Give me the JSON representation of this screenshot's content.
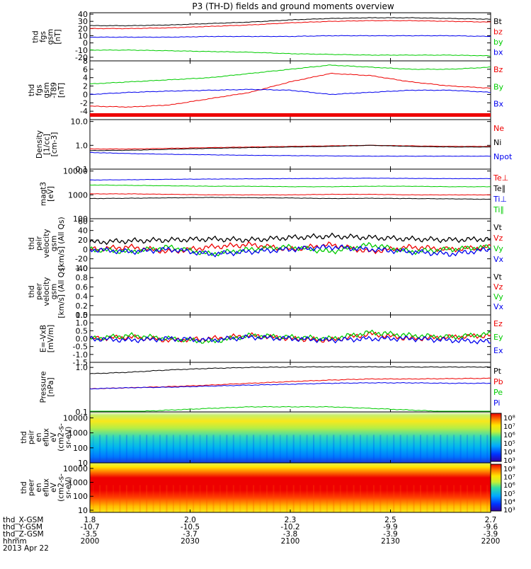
{
  "chart_data": {
    "type": "line",
    "title": "P3 (TH-D) fields and ground moments overview",
    "x": {
      "rows": [
        {
          "label": "thd_X-GSM",
          "values": [
            "1.8",
            "2.0",
            "2.3",
            "2.5",
            "2.7"
          ]
        },
        {
          "label": "thd_Y-GSM",
          "values": [
            "-10.7",
            "-10.5",
            "-10.2",
            "-9.9",
            "-9.6"
          ]
        },
        {
          "label": "thd_Z-GSM",
          "values": [
            "-3.5",
            "-3.7",
            "-3.8",
            "-3.9",
            "-3.9"
          ]
        },
        {
          "label": "hhmm",
          "values": [
            "2000",
            "2030",
            "2100",
            "2130",
            "2200"
          ]
        }
      ],
      "date": "2013 Apr 22"
    },
    "panels": [
      {
        "ylabel": [
          "thd",
          "fgs",
          "gsm",
          "[nT]"
        ],
        "ylim": [
          -25,
          42
        ],
        "yticks": [
          {
            "v": 40,
            "t": "40"
          },
          {
            "v": 30,
            "t": "30"
          },
          {
            "v": 20,
            "t": "20"
          },
          {
            "v": 10,
            "t": "10"
          },
          {
            "v": 0,
            "t": "0"
          },
          {
            "v": -10,
            "t": "-10"
          },
          {
            "v": -20,
            "t": "-20"
          }
        ],
        "series": [
          {
            "name": "Bt",
            "color": "#000000",
            "values": [
              24,
              24,
              25,
              27,
              29,
              32,
              34,
              35,
              35,
              34,
              33
            ]
          },
          {
            "name": "bz",
            "color": "#ee0000",
            "values": [
              20,
              20,
              21,
              23,
              25,
              28,
              30,
              31,
              31,
              30,
              29
            ]
          },
          {
            "name": "by",
            "color": "#00cc00",
            "values": [
              -10,
              -10,
              -11,
              -12,
              -13,
              -15,
              -16,
              -17,
              -17,
              -17,
              -18
            ]
          },
          {
            "name": "bx",
            "color": "#0000ee",
            "values": [
              8,
              8,
              8,
              9,
              9,
              9,
              10,
              10,
              10,
              10,
              9
            ]
          }
        ]
      },
      {
        "ylabel": [
          "thd",
          "fgs",
          "gsm",
          "-T89",
          "[nT]"
        ],
        "ylim": [
          -6,
          8
        ],
        "yticks": [
          {
            "v": 8,
            "t": "8"
          },
          {
            "v": 6,
            "t": "6"
          },
          {
            "v": 4,
            "t": "4"
          },
          {
            "v": 2,
            "t": "2"
          },
          {
            "v": 0,
            "t": "0"
          },
          {
            "v": -2,
            "t": "-2"
          },
          {
            "v": -4,
            "t": "-4"
          }
        ],
        "series": [
          {
            "name": "Bz",
            "color": "#ee0000",
            "values": [
              -2.8,
              -3,
              -2.5,
              -1,
              0.5,
              3,
              5,
              4.5,
              3,
              2,
              1.5
            ]
          },
          {
            "name": "By",
            "color": "#00cc00",
            "values": [
              2.5,
              3,
              3.5,
              4,
              5,
              6,
              7,
              6.5,
              6,
              6,
              6.5
            ]
          },
          {
            "name": "Bx",
            "color": "#0000ee",
            "values": [
              0,
              0.5,
              0.8,
              1,
              1.2,
              1,
              0,
              0.5,
              1,
              1,
              0.5
            ]
          }
        ]
      },
      {
        "ylabel": [
          "Density",
          "[1/cc]",
          "[cm-3]"
        ],
        "log": true,
        "ylim": [
          0.1,
          12
        ],
        "yticks": [
          {
            "v": 10,
            "t": "10.0"
          },
          {
            "v": 1,
            "t": "1.0"
          },
          {
            "v": 0.1,
            "t": "0.1"
          }
        ],
        "series": [
          {
            "name": "Ne",
            "color": "#ee0000",
            "values": [
              0.7,
              0.7,
              0.75,
              0.8,
              0.85,
              0.9,
              0.95,
              1.0,
              0.95,
              0.9,
              0.9
            ]
          },
          {
            "name": "Ni",
            "color": "#000000",
            "values": [
              0.6,
              0.62,
              0.68,
              0.75,
              0.8,
              0.85,
              0.9,
              1.0,
              0.9,
              0.85,
              0.85
            ]
          },
          {
            "name": "Npot",
            "color": "#0000ee",
            "values": [
              0.5,
              0.45,
              0.42,
              0.4,
              0.38,
              0.37,
              0.36,
              0.35,
              0.35,
              0.35,
              0.35
            ]
          }
        ]
      },
      {
        "ylabel": [
          "magt3",
          "[eV]"
        ],
        "log": true,
        "ylim": [
          100,
          12000
        ],
        "yticks": [
          {
            "v": 10000,
            "t": "10000"
          },
          {
            "v": 1000,
            "t": "1000"
          },
          {
            "v": 100,
            "t": "100"
          }
        ],
        "series": [
          {
            "name": "Te⊥",
            "color": "#ee0000",
            "values": [
              1100,
              1100,
              1050,
              1000,
              1000,
              1000,
              1050,
              1050,
              1000,
              1000,
              1000
            ]
          },
          {
            "name": "Te∥",
            "color": "#000000",
            "values": [
              700,
              720,
              750,
              780,
              760,
              740,
              700,
              720,
              700,
              680,
              650
            ]
          },
          {
            "name": "Ti⊥",
            "color": "#0000ee",
            "values": [
              4200,
              4300,
              4500,
              4600,
              4700,
              4800,
              4900,
              5000,
              4900,
              4800,
              4800
            ]
          },
          {
            "name": "Ti∥",
            "color": "#00cc00",
            "values": [
              2600,
              2500,
              2400,
              2300,
              2300,
              2200,
              2200,
              2300,
              2300,
              2200,
              2200
            ]
          }
        ]
      },
      {
        "ylabel": [
          "thd",
          "peir",
          "velocity",
          "gsm",
          "[km/s] (All Qs)"
        ],
        "ylim": [
          -40,
          65
        ],
        "yticks": [
          {
            "v": 60,
            "t": "60"
          },
          {
            "v": 40,
            "t": "40"
          },
          {
            "v": 20,
            "t": "20"
          },
          {
            "v": 0,
            "t": "0"
          },
          {
            "v": -20,
            "t": "-20"
          },
          {
            "v": -40,
            "t": "-40"
          }
        ],
        "series": [
          {
            "name": "Vt",
            "color": "#000000",
            "values": [
              15,
              18,
              20,
              22,
              20,
              25,
              28,
              25,
              22,
              20,
              22
            ]
          },
          {
            "name": "Vz",
            "color": "#ee0000",
            "values": [
              0,
              5,
              -5,
              5,
              10,
              0,
              10,
              -5,
              5,
              0,
              5
            ]
          },
          {
            "name": "Vy",
            "color": "#00cc00",
            "values": [
              0,
              -5,
              5,
              -10,
              0,
              5,
              -5,
              10,
              -5,
              0,
              5
            ]
          },
          {
            "name": "Vx",
            "color": "#0000ee",
            "values": [
              0,
              -5,
              0,
              -10,
              -5,
              0,
              5,
              0,
              -5,
              -10,
              0
            ]
          }
        ]
      },
      {
        "ylabel": [
          "thd",
          "peer",
          "velocity",
          "gsm",
          "[km/s] (All Qs)"
        ],
        "ylim": [
          0,
          1.0
        ],
        "yticks": [
          {
            "v": 1.0,
            "t": "1.0"
          },
          {
            "v": 0.8,
            "t": "0.8"
          },
          {
            "v": 0.6,
            "t": "0.6"
          },
          {
            "v": 0.4,
            "t": "0.4"
          },
          {
            "v": 0.2,
            "t": "0.2"
          },
          {
            "v": 0.0,
            "t": "0.0"
          }
        ],
        "series": [
          {
            "name": "Vt",
            "color": "#000000",
            "values": []
          },
          {
            "name": "Vz",
            "color": "#ee0000",
            "values": []
          },
          {
            "name": "Vy",
            "color": "#00cc00",
            "values": []
          },
          {
            "name": "Vx",
            "color": "#0000ee",
            "values": []
          }
        ]
      },
      {
        "ylabel": [
          "E=-VxB",
          "[mV/m]"
        ],
        "ylim": [
          -1.5,
          1.5
        ],
        "yticks": [
          {
            "v": 1.5,
            "t": "1.5"
          },
          {
            "v": 1.0,
            "t": "1.0"
          },
          {
            "v": 0.5,
            "t": "0.5"
          },
          {
            "v": 0.0,
            "t": "0.0"
          },
          {
            "v": -0.5,
            "t": "-0.5"
          },
          {
            "v": -1.0,
            "t": "-1.0"
          },
          {
            "v": -1.5,
            "t": "-1.5"
          }
        ],
        "series": [
          {
            "name": "Ez",
            "color": "#ee0000",
            "values": [
              0,
              0.1,
              -0.1,
              0,
              0.2,
              0,
              -0.1,
              0.3,
              0,
              0.1,
              0.2
            ]
          },
          {
            "name": "Ey",
            "color": "#00cc00",
            "values": [
              0,
              0.2,
              0,
              -0.2,
              0.2,
              0.1,
              0,
              0.4,
              0.2,
              0.1,
              0.3
            ]
          },
          {
            "name": "Ex",
            "color": "#0000ee",
            "values": [
              0,
              -0.1,
              0,
              -0.1,
              0.1,
              0,
              -0.1,
              0,
              0,
              -0.1,
              -0.2
            ]
          }
        ]
      },
      {
        "ylabel": [
          "Pressure",
          "[nPa]"
        ],
        "log": true,
        "ylim": [
          0.1,
          1.3
        ],
        "yticks": [
          {
            "v": 1.0,
            "t": "1.0"
          },
          {
            "v": 0.1,
            "t": "0.1"
          }
        ],
        "series": [
          {
            "name": "Pt",
            "color": "#000000",
            "values": [
              0.72,
              0.78,
              0.88,
              0.95,
              1.0,
              1.02,
              1.03,
              1.03,
              1.02,
              1.02,
              1.02
            ]
          },
          {
            "name": "Pb",
            "color": "#ee0000",
            "values": [
              0.33,
              0.35,
              0.37,
              0.4,
              0.44,
              0.48,
              0.52,
              0.55,
              0.55,
              0.56,
              0.57
            ]
          },
          {
            "name": "Pe",
            "color": "#00cc00",
            "values": [
              0.1,
              0.1,
              0.11,
              0.12,
              0.13,
              0.13,
              0.13,
              0.12,
              0.11,
              0.1,
              0.1
            ]
          },
          {
            "name": "Pi",
            "color": "#0000ee",
            "values": [
              0.33,
              0.35,
              0.36,
              0.38,
              0.4,
              0.42,
              0.44,
              0.45,
              0.45,
              0.44,
              0.44
            ]
          }
        ]
      }
    ],
    "spectrograms": [
      {
        "ylabel": [
          "thd",
          "peir",
          "en",
          "eflux",
          "eV",
          "(cm2-s-",
          "sr-eV)"
        ],
        "log": true,
        "ylim": [
          10,
          25000
        ],
        "yticks": [
          {
            "v": 10000,
            "t": "10000"
          },
          {
            "v": 1000,
            "t": "1000"
          },
          {
            "v": 100,
            "t": "100"
          },
          {
            "v": 10,
            "t": "10"
          }
        ],
        "colorbar": [
          "10⁸",
          "10⁷",
          "10⁶",
          "10⁵",
          "10⁴",
          "10³"
        ]
      },
      {
        "ylabel": [
          "thd",
          "peer",
          "en",
          "eflux",
          "eV",
          "(cm2-s-",
          "sr-eV)"
        ],
        "log": true,
        "ylim": [
          7,
          25000
        ],
        "yticks": [
          {
            "v": 10000,
            "t": "10000"
          },
          {
            "v": 1000,
            "t": "1000"
          },
          {
            "v": 100,
            "t": "100"
          },
          {
            "v": 10,
            "t": "10"
          }
        ],
        "colorbar": [
          "10⁸",
          "10⁷",
          "10⁶",
          "10⁵",
          "10⁴",
          "10³"
        ]
      }
    ]
  }
}
